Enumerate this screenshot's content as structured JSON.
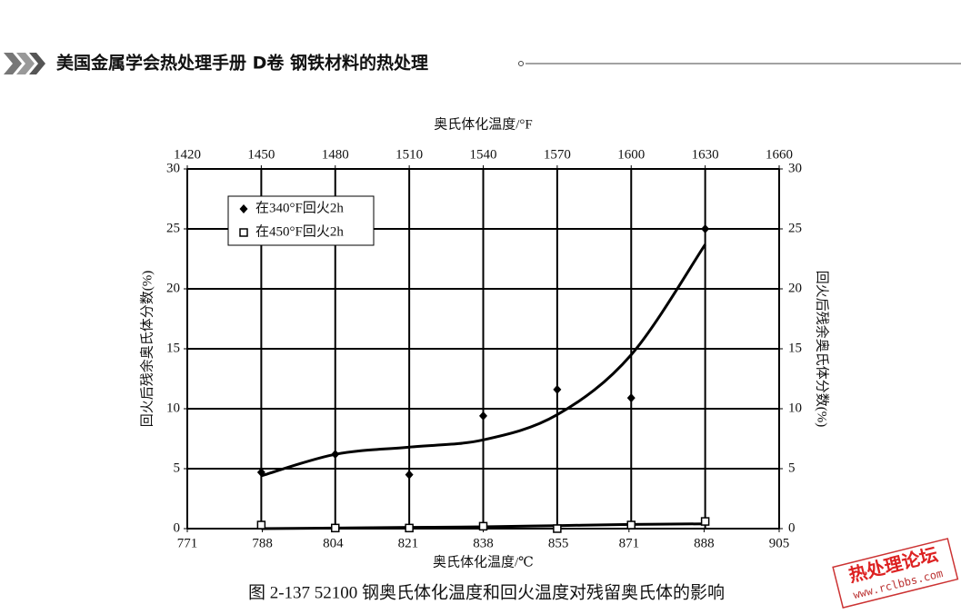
{
  "header": {
    "title": "美国金属学会热处理手册  D卷  钢铁材料的热处理"
  },
  "chart_data": {
    "type": "scatter",
    "xlabel": "奥氏体化温度/°F",
    "x2label": "奥氏体化温度/℃",
    "ylabel": "回火后残余奥氏体分数(%)",
    "x": [
      1450,
      1480,
      1510,
      1540,
      1570,
      1600,
      1630
    ],
    "xlim": [
      1420,
      1660
    ],
    "xticks": [
      1420,
      1450,
      1480,
      1510,
      1540,
      1570,
      1600,
      1630,
      1660
    ],
    "x2lim": [
      771,
      905
    ],
    "x2ticks": [
      771,
      788,
      804,
      821,
      838,
      855,
      871,
      888,
      905
    ],
    "ylim": [
      0,
      30
    ],
    "yticks": [
      0,
      5,
      10,
      15,
      20,
      25,
      30
    ],
    "grid": true,
    "legend": "upper-left",
    "series": [
      {
        "name": "在340°F回火2h",
        "color": "#000000",
        "marker": "diamond",
        "values": [
          4.7,
          6.2,
          4.5,
          9.4,
          11.6,
          10.9,
          25
        ],
        "fit": [
          4.4,
          6.2,
          6.8,
          7.4,
          9.5,
          14.5,
          23.7
        ]
      },
      {
        "name": "在450°F回火2h",
        "color": "#000000",
        "marker": "square",
        "values": [
          0.3,
          0.05,
          0.05,
          0.2,
          0.0,
          0.3,
          0.6
        ],
        "fit": [
          0.0,
          0.05,
          0.1,
          0.15,
          0.25,
          0.35,
          0.4
        ]
      }
    ]
  },
  "caption": "图 2-137    52100 钢奥氏体化温度和回火温度对残留奥氏体的影响",
  "watermark": {
    "title": "热处理论坛",
    "url": "www.rclbbs.com"
  }
}
